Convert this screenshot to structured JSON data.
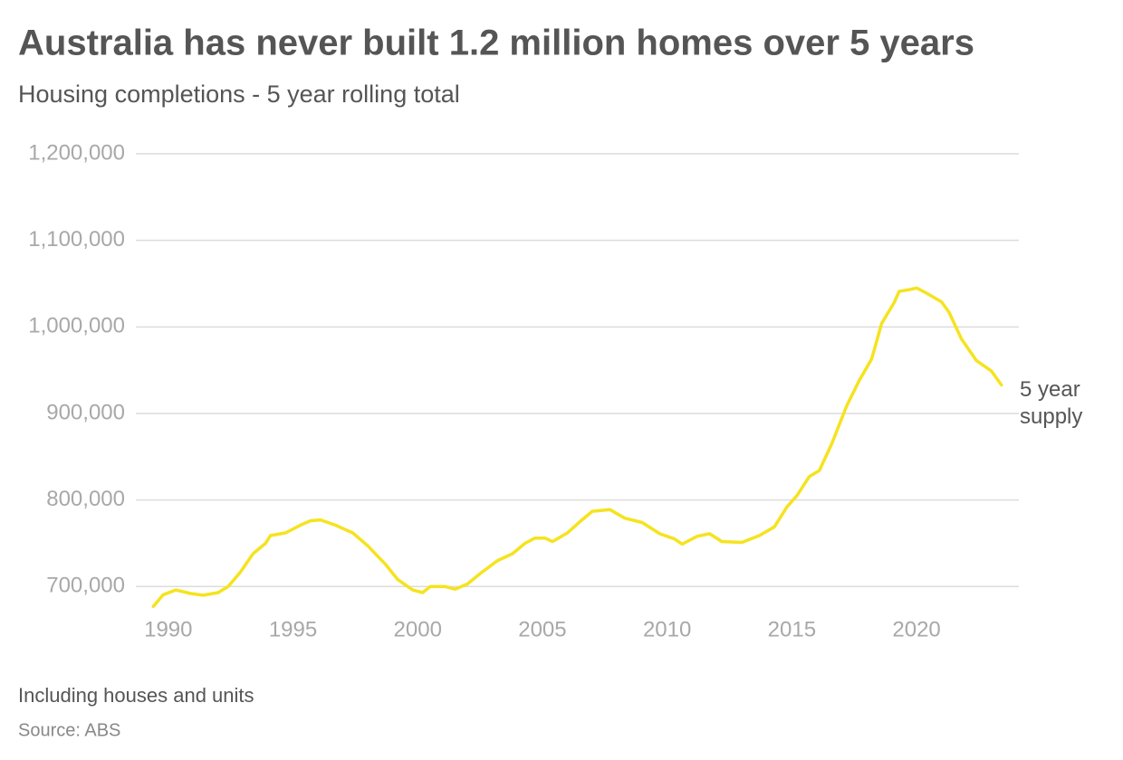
{
  "chart_data": {
    "type": "line",
    "title": "Australia has never built 1.2 million homes over 5 years",
    "subtitle": "Housing completions - 5 year rolling total",
    "note": "Including houses and units",
    "source": "Source: ABS",
    "xlim": [
      1988.7,
      2024.1
    ],
    "ylim": [
      670000,
      1200000
    ],
    "xticks": [
      1990,
      1995,
      2000,
      2005,
      2010,
      2015,
      2020
    ],
    "yticks": [
      {
        "value": 700000,
        "label": "700,000"
      },
      {
        "value": 800000,
        "label": "800,000"
      },
      {
        "value": 900000,
        "label": "900,000"
      },
      {
        "value": 1000000,
        "label": "1,000,000"
      },
      {
        "value": 1100000,
        "label": "1,100,000"
      },
      {
        "value": 1200000,
        "label": "1,200,000"
      }
    ],
    "grid": true,
    "x": [
      1989.4,
      1989.8,
      1990.3,
      1990.9,
      1991.4,
      1992.0,
      1992.4,
      1992.9,
      1993.4,
      1993.9,
      1994.1,
      1994.7,
      1995.3,
      1995.7,
      1996.1,
      1996.7,
      1997.4,
      1998.0,
      1998.7,
      1999.2,
      1999.8,
      2000.2,
      2000.5,
      2001.1,
      2001.5,
      2002.0,
      2002.5,
      2003.2,
      2003.8,
      2004.3,
      2004.7,
      2005.1,
      2005.4,
      2006.0,
      2006.5,
      2007.0,
      2007.7,
      2008.3,
      2009.0,
      2009.7,
      2010.3,
      2010.6,
      2011.2,
      2011.7,
      2012.2,
      2013.0,
      2013.7,
      2014.3,
      2014.8,
      2015.2,
      2015.7,
      2016.1,
      2016.6,
      2017.2,
      2017.7,
      2018.2,
      2018.6,
      2019.1,
      2019.3,
      2019.7,
      2020.0,
      2020.4,
      2021.0,
      2021.3,
      2021.8,
      2022.4,
      2023.0,
      2023.4
    ],
    "series": [
      {
        "name": "5 year supply",
        "color": "#f5e31f",
        "values": [
          677000,
          690600,
          696000,
          692000,
          690000,
          693000,
          700000,
          717000,
          738000,
          750000,
          759000,
          762000,
          771000,
          776000,
          777000,
          771000,
          762000,
          747000,
          726000,
          708000,
          696000,
          693000,
          700000,
          700000,
          697000,
          703000,
          715000,
          730000,
          738000,
          750000,
          756000,
          756000,
          752000,
          762000,
          775000,
          787000,
          789000,
          779000,
          774000,
          761000,
          755000,
          749000,
          758000,
          761000,
          752000,
          751000,
          759000,
          769000,
          792000,
          805000,
          827000,
          834000,
          865000,
          909000,
          938000,
          963000,
          1004000,
          1028000,
          1041000,
          1043000,
          1045000,
          1039000,
          1029000,
          1017000,
          986000,
          961000,
          949000,
          933000
        ]
      }
    ]
  }
}
